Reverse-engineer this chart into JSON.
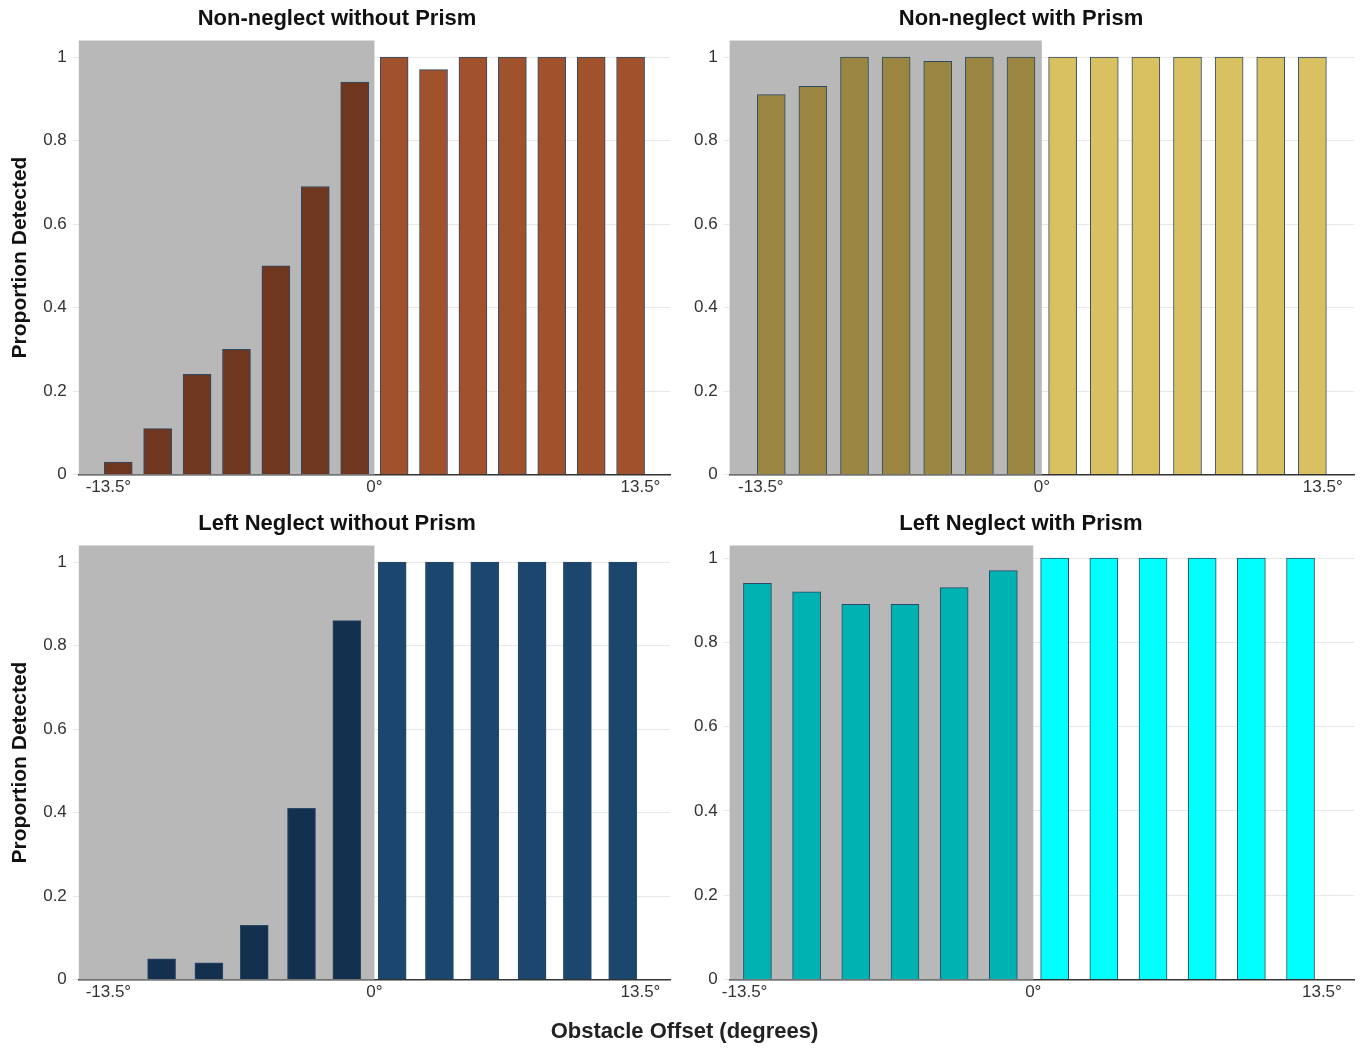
{
  "chart_data": [
    {
      "type": "bar",
      "title": "Non-neglect without Prism",
      "ylabel": "Proportion Detected",
      "x": [
        -13,
        -11,
        -9,
        -7,
        -5,
        -3,
        -1,
        1,
        3,
        5,
        7,
        9,
        11,
        13
      ],
      "values": [
        0.03,
        0.11,
        0.24,
        0.3,
        0.5,
        0.69,
        0.94,
        1,
        0.97,
        1,
        1,
        1,
        1,
        1
      ],
      "colors": [
        "#6f3720",
        "#6f3720",
        "#6f3720",
        "#6f3720",
        "#6f3720",
        "#6f3720",
        "#6f3720",
        "#a0522d",
        "#a0522d",
        "#a0522d",
        "#a0522d",
        "#a0522d",
        "#a0522d",
        "#a0522d"
      ],
      "xlim": [
        -15,
        15
      ],
      "xticks": [
        {
          "value": -13.5,
          "label": "-13.5°"
        },
        {
          "value": 0,
          "label": "0°"
        },
        {
          "value": 13.5,
          "label": "13.5°"
        }
      ],
      "ylim": [
        0,
        1.04
      ],
      "yticks": [
        0,
        0.2,
        0.4,
        0.6,
        0.8,
        1
      ],
      "grid": "y",
      "bands": [
        {
          "axis": "x",
          "from": -15,
          "to": 0,
          "color": "#b8b8b8"
        }
      ]
    },
    {
      "type": "bar",
      "title": "Non-neglect with Prism",
      "x": [
        -13,
        -11,
        -9,
        -7,
        -5,
        -3,
        -1,
        1,
        3,
        5,
        7,
        9,
        11,
        13
      ],
      "values": [
        0.91,
        0.93,
        1,
        1,
        0.99,
        1,
        1,
        1,
        1,
        1,
        1,
        1,
        1,
        1
      ],
      "colors": [
        "#9a8641",
        "#9a8641",
        "#9a8641",
        "#9a8641",
        "#9a8641",
        "#9a8641",
        "#9a8641",
        "#d9c060",
        "#d9c060",
        "#d9c060",
        "#d9c060",
        "#d9c060",
        "#d9c060",
        "#d9c060"
      ],
      "xlim": [
        -15,
        15
      ],
      "xticks": [
        {
          "value": -13.5,
          "label": "-13.5°"
        },
        {
          "value": 0,
          "label": "0°"
        },
        {
          "value": 13.5,
          "label": "13.5°"
        }
      ],
      "ylim": [
        0,
        1.04
      ],
      "yticks": [
        0,
        0.2,
        0.4,
        0.6,
        0.8,
        1
      ],
      "grid": "y",
      "bands": [
        {
          "axis": "x",
          "from": -15,
          "to": 0,
          "color": "#b8b8b8"
        }
      ]
    },
    {
      "type": "bar",
      "title": "Left Neglect without Prism",
      "ylabel": "Proportion Detected",
      "xlabel": "Obstacle Offset (degrees)",
      "x": [
        -13.1,
        -10.8,
        -8.4,
        -6.1,
        -3.7,
        -1.4,
        0.9,
        3.3,
        5.6,
        8,
        10.3,
        12.6
      ],
      "values": [
        0,
        0.05,
        0.04,
        0.13,
        0.41,
        0.86,
        1,
        1,
        1,
        1,
        1,
        1
      ],
      "colors": [
        "#14304f",
        "#14304f",
        "#14304f",
        "#14304f",
        "#14304f",
        "#14304f",
        "#1b466e",
        "#1b466e",
        "#1b466e",
        "#1b466e",
        "#1b466e",
        "#1b466e"
      ],
      "xlim": [
        -15,
        15
      ],
      "xticks": [
        {
          "value": -13.5,
          "label": "-13.5°"
        },
        {
          "value": 0,
          "label": "0°"
        },
        {
          "value": 13.5,
          "label": "13.5°"
        }
      ],
      "ylim": [
        0,
        1.04
      ],
      "yticks": [
        0,
        0.2,
        0.4,
        0.6,
        0.8,
        1
      ],
      "grid": "y",
      "bands": [
        {
          "axis": "x",
          "from": -15,
          "to": 0,
          "color": "#b8b8b8"
        }
      ]
    },
    {
      "type": "bar",
      "title": "Left Neglect with Prism",
      "x": [
        -12.9,
        -10.6,
        -8.3,
        -6,
        -3.7,
        -1.4,
        1,
        3.3,
        5.6,
        7.9,
        10.2,
        12.5
      ],
      "values": [
        0.94,
        0.92,
        0.89,
        0.89,
        0.93,
        0.97,
        1,
        1,
        1,
        1,
        1,
        1
      ],
      "colors": [
        "#00b2b2",
        "#00b2b2",
        "#00b2b2",
        "#00b2b2",
        "#00b2b2",
        "#00b2b2",
        "#00ffff",
        "#00ffff",
        "#00ffff",
        "#00ffff",
        "#00ffff",
        "#00ffff"
      ],
      "xlim": [
        -14.2,
        15
      ],
      "xticks": [
        {
          "value": -13.5,
          "label": "-13.5°"
        },
        {
          "value": 0,
          "label": "0°"
        },
        {
          "value": 13.5,
          "label": "13.5°"
        }
      ],
      "ylim": [
        0,
        1.03
      ],
      "yticks": [
        0,
        0.2,
        0.4,
        0.6,
        0.8,
        1
      ],
      "grid": "y",
      "bands": [
        {
          "axis": "x",
          "from": -14.2,
          "to": 0,
          "color": "#b8b8b8"
        }
      ]
    }
  ]
}
